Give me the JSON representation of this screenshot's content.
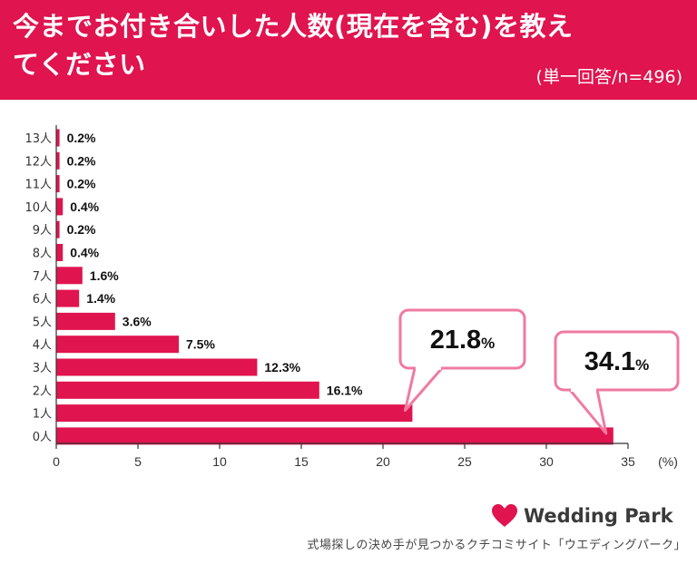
{
  "header": {
    "title": "今までお付き合いした人数(現在を含む)を教えてください",
    "subtitle": "(単一回答/n=496)"
  },
  "colors": {
    "brand": "#e0144f",
    "bar": "#e0144f",
    "callout_border": "#f07aa0"
  },
  "chart_data": {
    "type": "bar",
    "orientation": "horizontal",
    "categories": [
      "13人",
      "12人",
      "11人",
      "10人",
      "9人",
      "8人",
      "7人",
      "6人",
      "5人",
      "4人",
      "3人",
      "2人",
      "1人",
      "0人"
    ],
    "values": [
      0.2,
      0.2,
      0.2,
      0.4,
      0.2,
      0.4,
      1.6,
      1.4,
      3.6,
      7.5,
      12.3,
      16.1,
      21.8,
      34.1
    ],
    "value_labels": [
      "0.2%",
      "0.2%",
      "0.2%",
      "0.4%",
      "0.2%",
      "0.4%",
      "1.6%",
      "1.4%",
      "3.6%",
      "7.5%",
      "12.3%",
      "16.1%",
      "",
      ""
    ],
    "xlim": [
      0,
      35
    ],
    "x_ticks": [
      "0",
      "5",
      "10",
      "15",
      "20",
      "25",
      "30",
      "35"
    ],
    "x_unit": "(%)",
    "callouts": [
      {
        "category": "1人",
        "value_text": "21.8",
        "unit": "%"
      },
      {
        "category": "0人",
        "value_text": "34.1",
        "unit": "%"
      }
    ]
  },
  "footer": {
    "logo_text": "Wedding Park",
    "logo_icon": "heart-icon",
    "tagline": "式場探しの決め手が見つかるクチコミサイト「ウエディングパーク」"
  }
}
